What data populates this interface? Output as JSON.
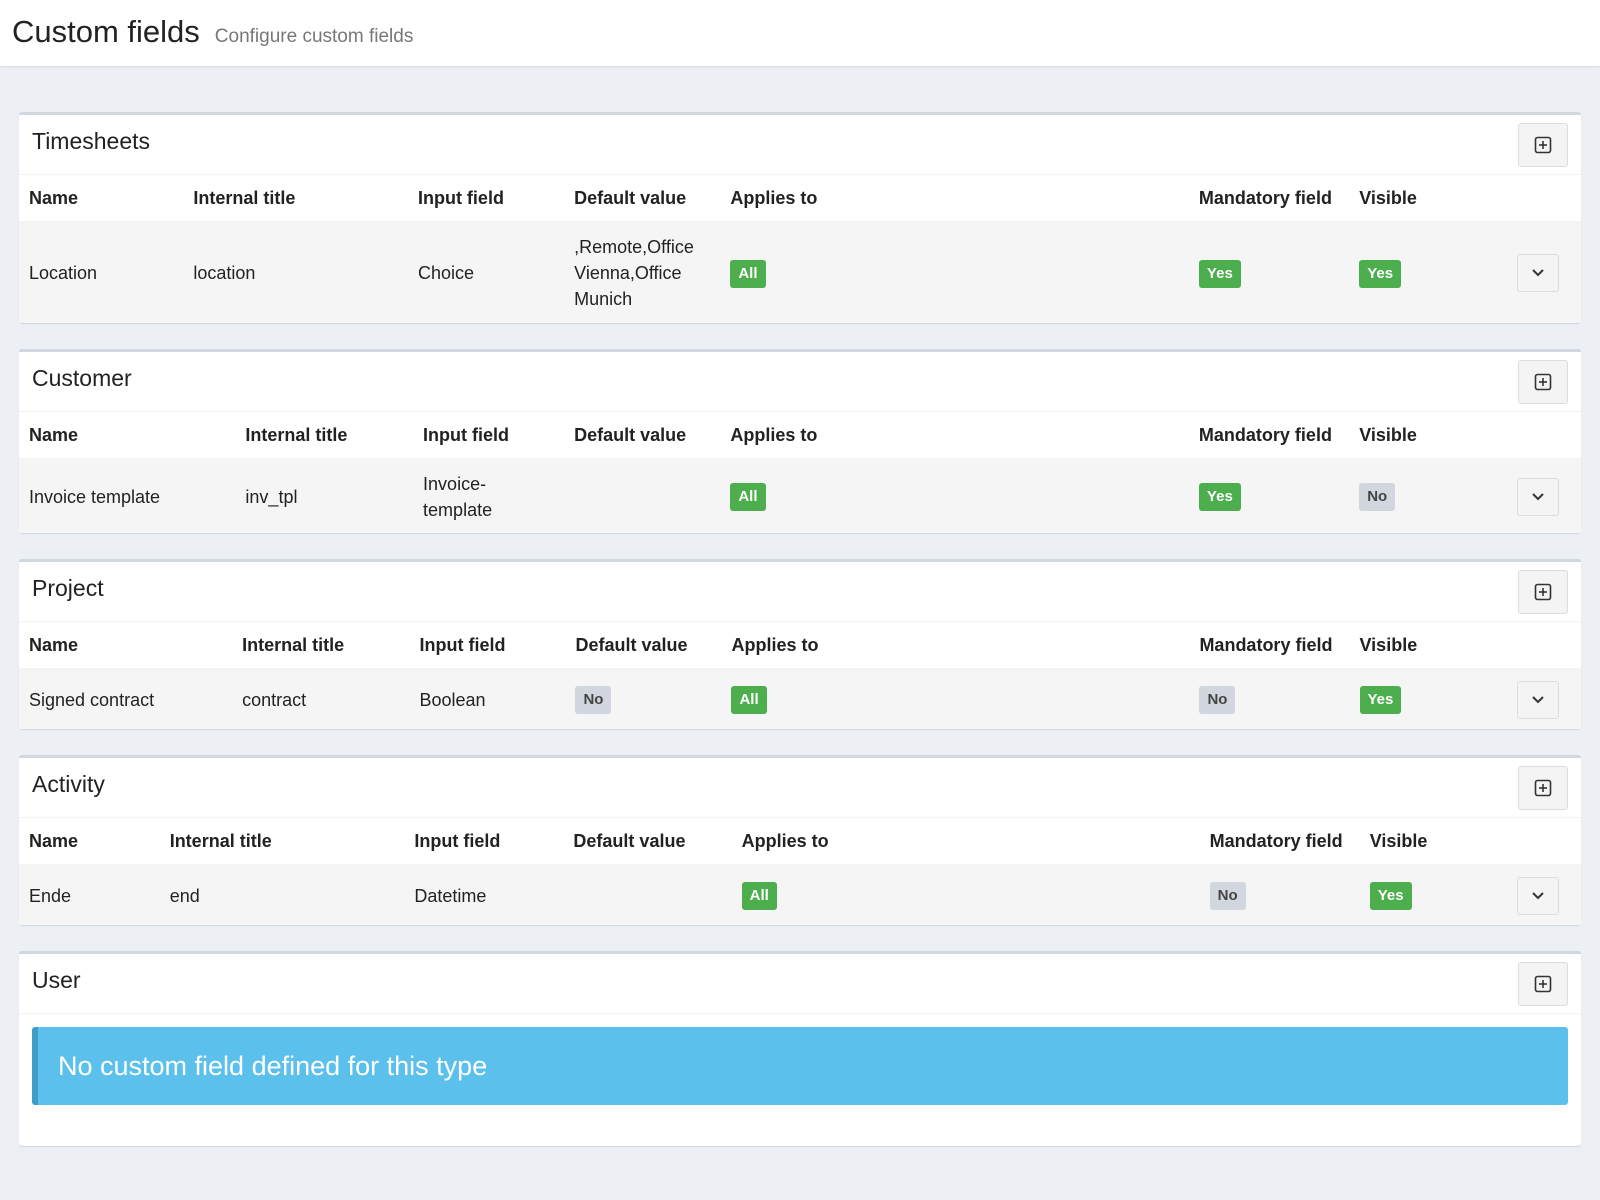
{
  "header": {
    "title": "Custom fields",
    "subtitle": "Configure custom fields"
  },
  "columns": {
    "name": "Name",
    "internal_title": "Internal title",
    "input_field": "Input field",
    "default_value": "Default value",
    "applies_to": "Applies to",
    "mandatory": "Mandatory field",
    "visible": "Visible"
  },
  "colors": {
    "yes_badge": "#4cae4c",
    "no_badge": "#d2d6de",
    "callout_info": "#5bc0eb",
    "background": "#ecf0f5"
  },
  "sections": {
    "timesheets": {
      "title": "Timesheets",
      "rows": [
        {
          "name": "Location",
          "internal_title": "location",
          "input_field": "Choice",
          "default_value": ",Remote,Office Vienna,Office Munich",
          "applies_to": "All",
          "mandatory": "Yes",
          "visible": "Yes"
        }
      ]
    },
    "customer": {
      "title": "Customer",
      "rows": [
        {
          "name": "Invoice template",
          "internal_title": "inv_tpl",
          "input_field": "Invoice-template",
          "default_value": "",
          "applies_to": "All",
          "mandatory": "Yes",
          "visible": "No"
        }
      ]
    },
    "project": {
      "title": "Project",
      "rows": [
        {
          "name": "Signed contract",
          "internal_title": "contract",
          "input_field": "Boolean",
          "default_value": "No",
          "applies_to": "All",
          "mandatory": "No",
          "visible": "Yes"
        }
      ]
    },
    "activity": {
      "title": "Activity",
      "rows": [
        {
          "name": "Ende",
          "internal_title": "end",
          "input_field": "Datetime",
          "default_value": "",
          "applies_to": "All",
          "mandatory": "No",
          "visible": "Yes"
        }
      ]
    },
    "user": {
      "title": "User",
      "empty_message": "No custom field defined for this type"
    }
  },
  "icons": {
    "add": "plus-square-icon",
    "toggle": "chevron-down-icon"
  }
}
